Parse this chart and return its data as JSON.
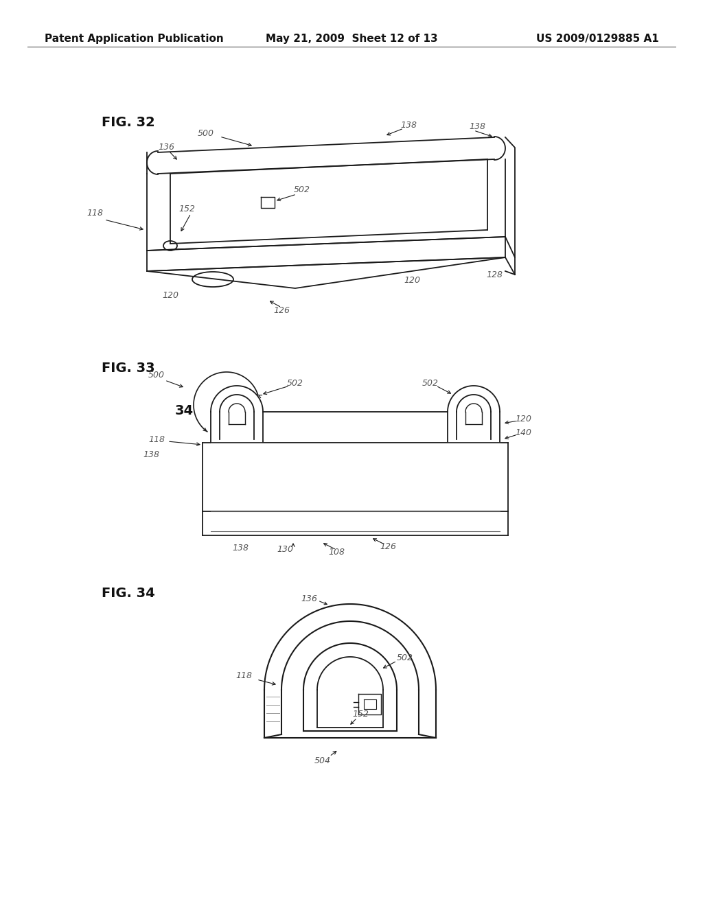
{
  "background_color": "#ffffff",
  "header_left": "Patent Application Publication",
  "header_center": "May 21, 2009  Sheet 12 of 13",
  "header_right": "US 2009/0129885 A1",
  "fig32_label": "FIG. 32",
  "fig33_label": "FIG. 33",
  "fig34_label": "FIG. 34",
  "line_color": "#1a1a1a",
  "header_font_size": 11,
  "fig_label_font_size": 14,
  "annotation_font_size": 9
}
